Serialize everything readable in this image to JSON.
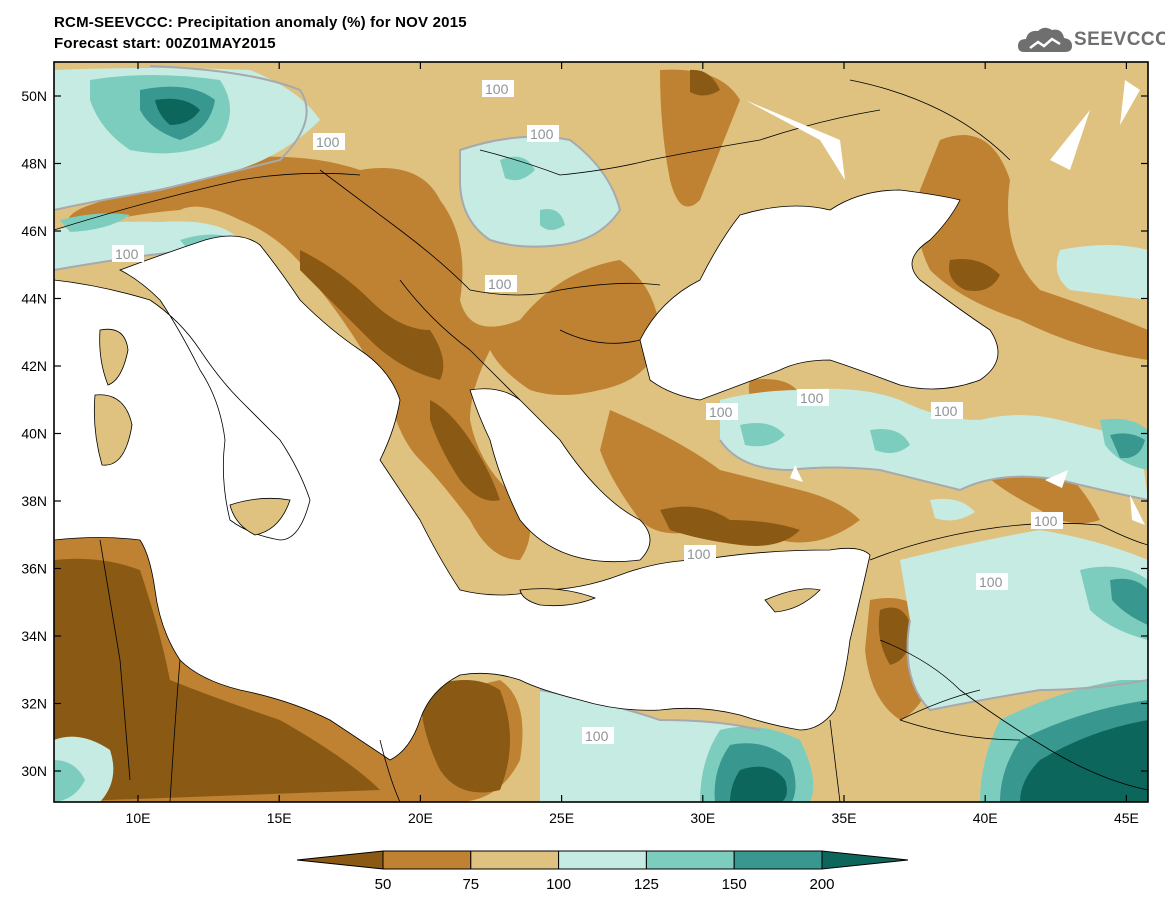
{
  "header": {
    "title": "RCM-SEEVCCC: Precipitation anomaly (%) for NOV 2015",
    "subtitle": "Forecast start: 00Z01MAY2015"
  },
  "logo": {
    "text": "SEEVCCC",
    "icon": "cloud-icon"
  },
  "map": {
    "lat_labels": [
      "50N",
      "48N",
      "46N",
      "44N",
      "42N",
      "40N",
      "38N",
      "36N",
      "34N",
      "32N",
      "30N"
    ],
    "lon_labels": [
      "10E",
      "15E",
      "20E",
      "25E",
      "30E",
      "35E",
      "40E",
      "45E"
    ],
    "contour_label": "100",
    "colors": {
      "below_50": "#8a5a14",
      "50_75": "#bf8233",
      "75_100": "#dfc280",
      "100_125": "#c6ebe3",
      "125_150": "#7dcdbf",
      "150_200": "#38978f",
      "above_200": "#0c665c",
      "sea": "#ffffff",
      "contour": "#a6a9ad"
    }
  },
  "colorbar": {
    "labels": [
      "50",
      "75",
      "100",
      "125",
      "150",
      "200"
    ],
    "colors": [
      "#8a5a14",
      "#bf8233",
      "#dfc280",
      "#c6ebe3",
      "#7dcdbf",
      "#38978f",
      "#0c665c"
    ]
  }
}
